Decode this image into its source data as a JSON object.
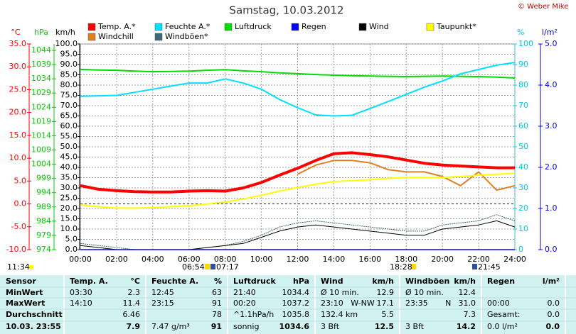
{
  "chart_data": {
    "type": "line",
    "title": "Samstag, 10.03.2012",
    "annotations": [
      "© Weber Mike",
      "11:34",
      "06:54",
      "07:17",
      "18:28",
      "21:45"
    ],
    "x": [
      0,
      1,
      2,
      3,
      4,
      5,
      6,
      7,
      8,
      9,
      10,
      11,
      12,
      13,
      14,
      15,
      16,
      17,
      18,
      19,
      20,
      21,
      22,
      23,
      24
    ],
    "xlim": [
      0,
      24
    ],
    "xticks": [
      {
        "value": 0,
        "label": "00:00"
      },
      {
        "value": 2,
        "label": "02:00"
      },
      {
        "value": 4,
        "label": "04:00"
      },
      {
        "value": 6,
        "label": "06:00"
      },
      {
        "value": 8,
        "label": "08:00"
      },
      {
        "value": 10,
        "label": "10:00"
      },
      {
        "value": 12,
        "label": "12:00"
      },
      {
        "value": 14,
        "label": "14:00"
      },
      {
        "value": 16,
        "label": "16:00"
      },
      {
        "value": 18,
        "label": "18:00"
      },
      {
        "value": 20,
        "label": "20:00"
      },
      {
        "value": 22,
        "label": "22:00"
      },
      {
        "value": 24,
        "label": "24:00"
      }
    ],
    "axes": [
      {
        "label": "°C",
        "color": "#ff0000",
        "lim": [
          -10,
          35
        ],
        "ticks": [
          {
            "value": -10,
            "label": "-10.0"
          },
          {
            "value": -5,
            "label": "-5.0"
          },
          {
            "value": 0,
            "label": "0.0"
          },
          {
            "value": 5,
            "label": "5.0"
          },
          {
            "value": 10,
            "label": "10.0"
          },
          {
            "value": 15,
            "label": "15.0"
          },
          {
            "value": 20,
            "label": "20.0"
          },
          {
            "value": 25,
            "label": "25.0"
          },
          {
            "value": 30,
            "label": "30.0"
          },
          {
            "value": 35,
            "label": "35.0"
          }
        ]
      },
      {
        "label": "hPa",
        "color": "#00cc00",
        "lim": [
          974,
          1046.25
        ],
        "ticks": [
          974,
          979,
          984,
          989,
          994,
          999,
          1004,
          1009,
          1014,
          1019,
          1024,
          1029,
          1034,
          1039,
          1044
        ]
      },
      {
        "label": "km/h",
        "color": "#000000",
        "grid": true,
        "lim": [
          0,
          100
        ],
        "ticks": [
          {
            "value": 0,
            "label": "0.0"
          },
          {
            "value": 5,
            "label": "5.0"
          },
          {
            "value": 10,
            "label": "10.0"
          },
          {
            "value": 15,
            "label": "15.0"
          },
          {
            "value": 20,
            "label": "20.0"
          },
          {
            "value": 25,
            "label": "25.0"
          },
          {
            "value": 30,
            "label": "30.0"
          },
          {
            "value": 35,
            "label": "35.0"
          },
          {
            "value": 40,
            "label": "40.0"
          },
          {
            "value": 45,
            "label": "45.0"
          },
          {
            "value": 50,
            "label": "50.0"
          },
          {
            "value": 55,
            "label": "55.0"
          },
          {
            "value": 60,
            "label": "60.0"
          },
          {
            "value": 65,
            "label": "65.0"
          },
          {
            "value": 70,
            "label": "70.0"
          },
          {
            "value": 75,
            "label": "75.0"
          },
          {
            "value": 80,
            "label": "80.0"
          },
          {
            "value": 85,
            "label": "85.0"
          },
          {
            "value": 90,
            "label": "90.0"
          },
          {
            "value": 95,
            "label": "95.0"
          },
          {
            "value": 100,
            "label": "100.0"
          }
        ]
      },
      {
        "label": "%",
        "color": "#00c8e8",
        "lim": [
          0,
          100
        ],
        "ticks": [
          0,
          10,
          20,
          30,
          40,
          50,
          60,
          70,
          80,
          90,
          100
        ]
      },
      {
        "label": "l/m²",
        "color": "#0000ff",
        "lim": [
          0,
          5
        ],
        "ticks": [
          {
            "value": 0,
            "label": "0.0"
          },
          {
            "value": 1,
            "label": "1.0"
          },
          {
            "value": 2,
            "label": "2.0"
          },
          {
            "value": 3,
            "label": "3.0"
          },
          {
            "value": 4,
            "label": "4.0"
          },
          {
            "value": 5,
            "label": "5.0"
          }
        ]
      }
    ],
    "series": [
      {
        "name": "Temp. A.*",
        "color": "#ff0000",
        "axis": "°C",
        "values": [
          4.0,
          3.2,
          2.9,
          2.7,
          2.6,
          2.6,
          2.8,
          2.9,
          2.8,
          3.5,
          4.7,
          6.3,
          7.8,
          9.5,
          11.0,
          11.2,
          10.8,
          10.3,
          9.6,
          8.9,
          8.5,
          8.3,
          8.1,
          7.9,
          7.9
        ]
      },
      {
        "name": "Feuchte A.*",
        "color": "#00e0ff",
        "axis": "%",
        "values": [
          74.5,
          74.8,
          75,
          76.5,
          78,
          79.5,
          81,
          81,
          83,
          81,
          78,
          73,
          69,
          65.5,
          65,
          65.3,
          68.6,
          72,
          75.5,
          79,
          82,
          85.5,
          87.6,
          89.7,
          91
        ]
      },
      {
        "name": "Luftdruck",
        "color": "#00dd00",
        "axis": "hPa",
        "values": [
          1037.3,
          1037.1,
          1037.0,
          1036.7,
          1036.5,
          1036.6,
          1036.7,
          1037.0,
          1037.2,
          1036.8,
          1036.5,
          1036.1,
          1035.8,
          1035.5,
          1035.3,
          1035.1,
          1035.0,
          1034.9,
          1034.8,
          1034.9,
          1035.0,
          1034.9,
          1034.8,
          1034.6,
          1034.3
        ]
      },
      {
        "name": "Regen",
        "color": "#0000ff",
        "axis": "l/m²",
        "values": [
          0,
          0,
          0,
          0,
          0,
          0,
          0,
          0,
          0,
          0,
          0,
          0,
          0,
          0,
          0,
          0,
          0,
          0,
          0,
          0,
          0,
          0,
          0,
          0,
          0
        ]
      },
      {
        "name": "Wind",
        "color": "#000000",
        "axis": "km/h",
        "values": [
          2,
          1,
          0,
          0,
          0,
          0,
          0,
          1,
          2,
          3,
          6,
          9,
          11,
          12,
          11,
          10,
          9,
          8,
          7,
          7,
          10,
          11,
          12,
          14,
          11
        ]
      },
      {
        "name": "Taupunkt*",
        "color": "#ffff00",
        "axis": "°C",
        "values": [
          -0.2,
          -0.6,
          -0.9,
          -0.9,
          -0.8,
          -0.6,
          -0.4,
          0.0,
          0.4,
          1.1,
          1.9,
          2.8,
          3.6,
          4.3,
          4.9,
          5.1,
          5.3,
          5.6,
          5.8,
          5.8,
          5.8,
          6.0,
          6.3,
          6.5,
          6.7
        ]
      },
      {
        "name": "Windchill",
        "color": "#e08020",
        "axis": "°C",
        "values": [
          null,
          null,
          null,
          null,
          null,
          null,
          null,
          null,
          null,
          null,
          null,
          null,
          6.5,
          8.5,
          9.5,
          9.5,
          9.0,
          7.5,
          7.0,
          7.0,
          6.0,
          4.0,
          7.0,
          3.0,
          4.0
        ]
      },
      {
        "name": "Windböen*",
        "color": "#406878",
        "axis": "km/h",
        "values": [
          3,
          2,
          1,
          0,
          0,
          0,
          0,
          1,
          2,
          4,
          7,
          11,
          13,
          14,
          13,
          12,
          11,
          10,
          9,
          9,
          12,
          13,
          14,
          17,
          14
        ]
      }
    ]
  },
  "table": {
    "header": [
      "Sensor",
      "Temp. A.",
      "°C",
      "Feuchte A.",
      "%",
      "Luftdruck",
      "hPa",
      "Wind",
      "km/h",
      "Windböen",
      "km/h",
      "Regen",
      "l/m²"
    ],
    "rows": [
      [
        "MinWert",
        "03:30",
        "2.3",
        "12:45",
        "63",
        "21:40",
        "1034.4",
        "Ø 10 min.",
        "12.9",
        "Ø 10 min.",
        "12.4",
        null,
        null
      ],
      [
        "MaxWert",
        "14:10",
        "11.4",
        "23:15",
        "91",
        "00:20",
        "1037.2",
        "23:10   W-NW",
        "17.1",
        "23:35       N",
        "31.0",
        "00:00",
        "0.0"
      ],
      [
        "Durchschnitt",
        null,
        "6.46",
        null,
        "78",
        "^1.1hPa/h",
        "1035.8",
        "132.4 km",
        "5.5",
        null,
        "7.3",
        "Gesamt:",
        "0.0"
      ],
      [
        "10.03. 23:55",
        null,
        "7.9",
        "7.47 g/m³",
        "91",
        "sonnig",
        "1034.6",
        "3 Bft",
        "12.5",
        "3 Bft",
        "14.2",
        "0.0 l/m²",
        "0.0"
      ]
    ]
  }
}
